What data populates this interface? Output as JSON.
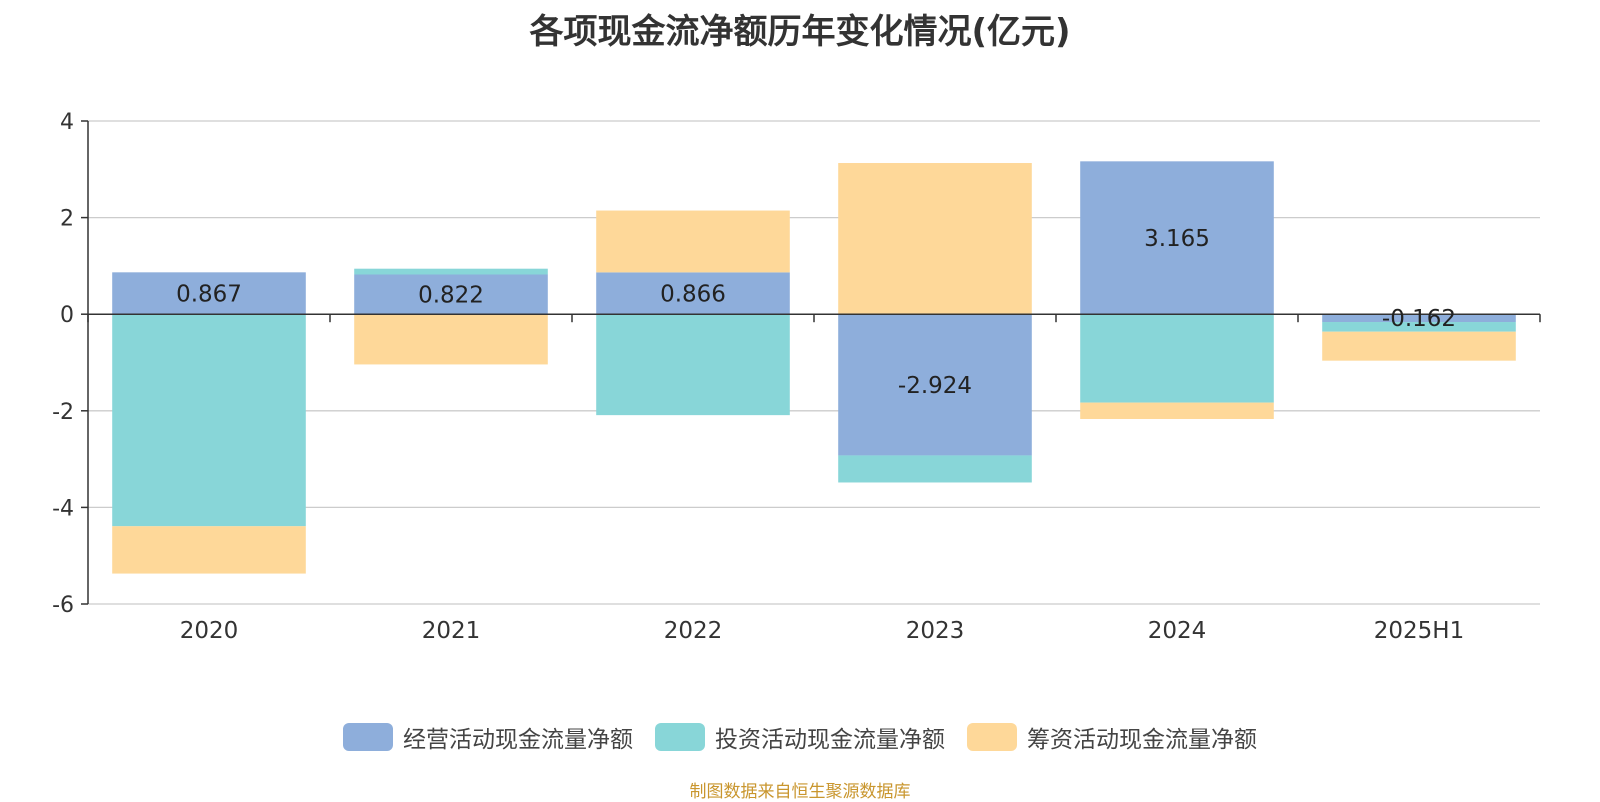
{
  "chart_data": {
    "type": "bar",
    "stacked": true,
    "title": "各项现金流净额历年变化情况(亿元)",
    "categories": [
      "2020",
      "2021",
      "2022",
      "2023",
      "2024",
      "2025H1"
    ],
    "ylim": [
      -6,
      4
    ],
    "yticks": [
      4,
      2,
      0,
      -2,
      -4,
      -6
    ],
    "grid": true,
    "legend_position": "bottom",
    "series": [
      {
        "name": "经营活动现金流量净额",
        "color": "#8eaedb",
        "values": [
          0.867,
          0.822,
          0.866,
          -2.924,
          3.165,
          -0.162
        ]
      },
      {
        "name": "投资活动现金流量净额",
        "color": "#88d6d8",
        "values": [
          -4.39,
          0.12,
          -2.09,
          -0.56,
          -1.83,
          -0.2
        ]
      },
      {
        "name": "筹资活动现金流量净额",
        "color": "#fed899",
        "values": [
          -0.98,
          -1.04,
          1.28,
          3.13,
          -0.34,
          -0.6
        ]
      }
    ],
    "data_labels": [
      "0.867",
      "0.822",
      "0.866",
      "-2.924",
      "3.165",
      "-0.162"
    ]
  },
  "source_note": "制图数据来自恒生聚源数据库",
  "source_color": "#c9962e"
}
